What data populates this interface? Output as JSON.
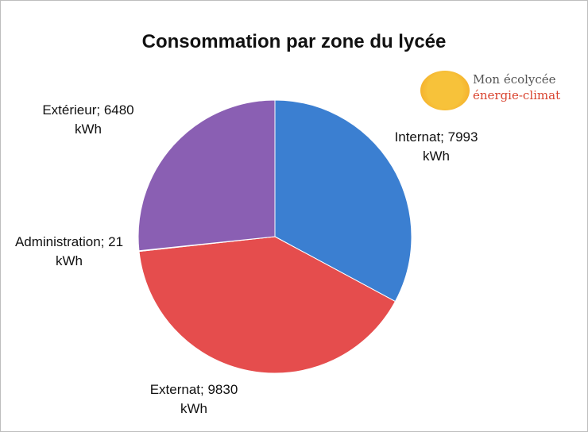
{
  "chart_data": {
    "type": "pie",
    "title": "Consommation par zone du lycée",
    "categories": [
      "Internat",
      "Externat",
      "Administration",
      "Extérieur"
    ],
    "values": [
      7993,
      9830,
      21,
      6480
    ],
    "value_labels": [
      "Internat; 7993 kWh",
      "Externat; 9830 kWh",
      "Administration; 21 kWh",
      "Extérieur; 6480 kWh"
    ],
    "colors": [
      "#3b7fd1",
      "#e54d4d",
      "#8cc152",
      "#8a5fb3"
    ]
  },
  "logo": {
    "line1": "Mon écolycée",
    "line2": "énergie-climat"
  }
}
